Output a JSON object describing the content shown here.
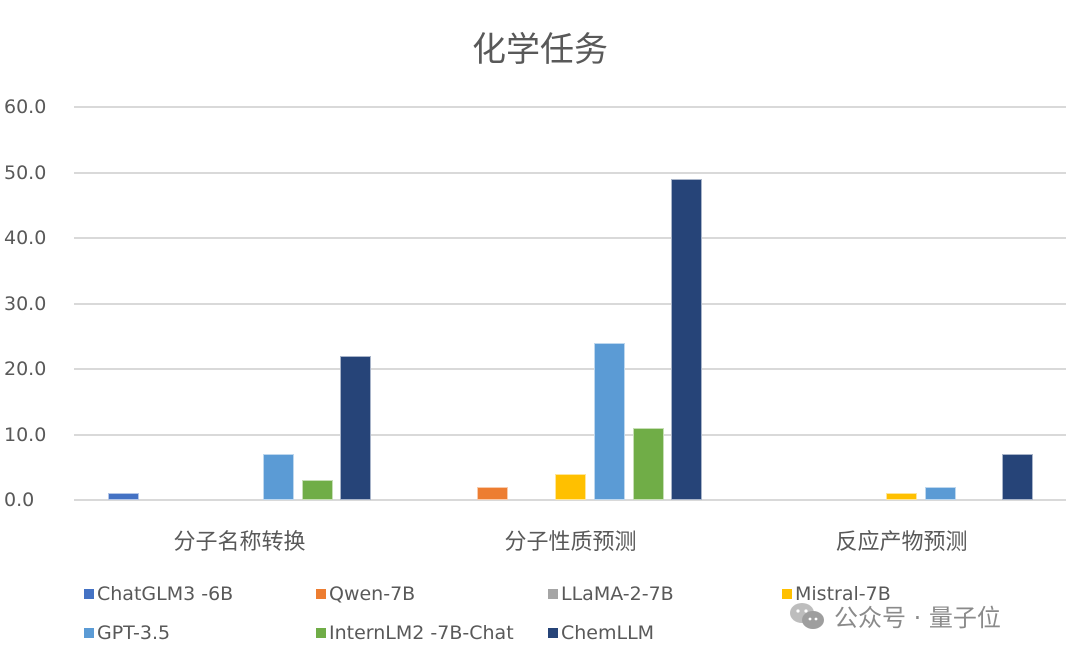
{
  "chart_data": {
    "type": "bar",
    "title": "化学任务",
    "xlabel": "",
    "ylabel": "",
    "ylim": [
      0,
      60
    ],
    "yticks": [
      "0.0",
      "10.0",
      "20.0",
      "30.0",
      "40.0",
      "50.0",
      "60.0"
    ],
    "grid": true,
    "legend_position": "bottom",
    "categories": [
      "分子名称转换",
      "分子性质预测",
      "反应产物预测"
    ],
    "series": [
      {
        "name": "ChatGLM3 -6B",
        "color": "#4472c4",
        "values": [
          1.0,
          0.0,
          0.0
        ]
      },
      {
        "name": "Qwen-7B",
        "color": "#ed7d31",
        "values": [
          0.0,
          2.0,
          0.0
        ]
      },
      {
        "name": "LLaMA-2-7B",
        "color": "#a5a5a5",
        "values": [
          0.0,
          0.0,
          0.0
        ]
      },
      {
        "name": "Mistral-7B",
        "color": "#ffc000",
        "values": [
          0.0,
          4.0,
          1.0
        ]
      },
      {
        "name": "GPT-3.5",
        "color": "#5b9bd5",
        "values": [
          7.0,
          24.0,
          2.0
        ]
      },
      {
        "name": "InternLM2 -7B-Chat",
        "color": "#70ad47",
        "values": [
          3.0,
          11.0,
          0.0
        ]
      },
      {
        "name": "ChemLLM",
        "color": "#264478",
        "values": [
          22.0,
          49.0,
          7.0
        ]
      }
    ]
  },
  "watermark": {
    "text": "公众号 · 量子位"
  }
}
